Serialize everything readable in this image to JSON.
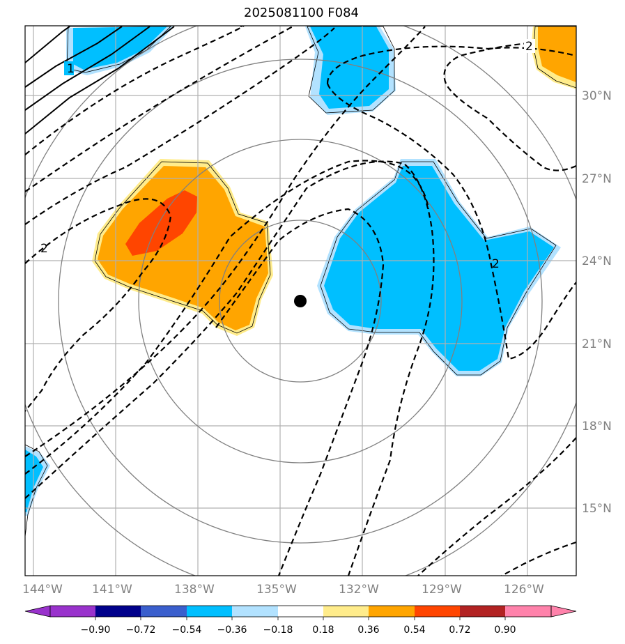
{
  "title": "2025081100 F084",
  "map": {
    "lon_ticks": [
      "144°W",
      "141°W",
      "138°W",
      "135°W",
      "132°W",
      "129°W",
      "126°W"
    ],
    "lat_ticks": [
      "30°N",
      "27°N",
      "24°N",
      "21°N",
      "18°N",
      "15°N"
    ],
    "center_marker": "storm-center",
    "contour_labels": [
      {
        "id": "1",
        "text": "1"
      },
      {
        "id": "2a",
        "text": "2"
      },
      {
        "id": "2b",
        "text": "2"
      },
      {
        "id": "2c",
        "text": "2"
      }
    ]
  },
  "colorbar": {
    "ticks": [
      "−0.90",
      "−0.72",
      "−0.54",
      "−0.36",
      "−0.18",
      "0.18",
      "0.36",
      "0.54",
      "0.72",
      "0.90"
    ],
    "colors": [
      "#9932cc",
      "#00008b",
      "#3a5fcd",
      "#00bfff",
      "#b2e2ff",
      "#ffffff",
      "#ffec8b",
      "#ffa500",
      "#ff4500",
      "#b22222",
      "#ff82ab"
    ]
  }
}
